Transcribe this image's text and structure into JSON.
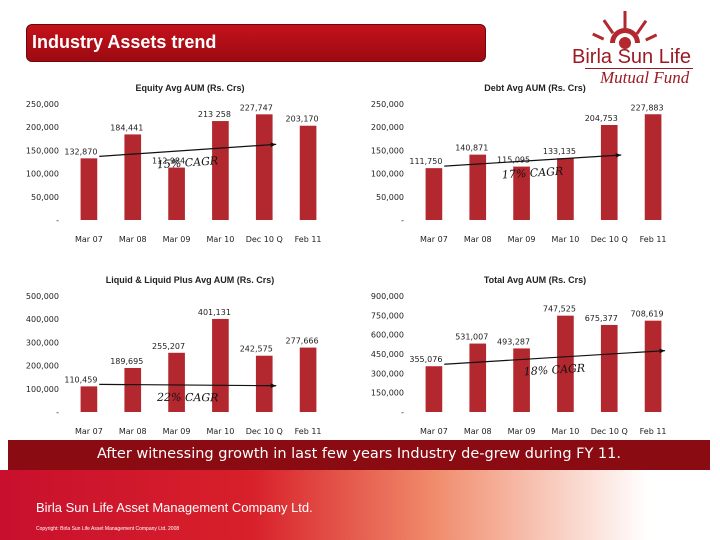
{
  "header": {
    "title": "Industry Assets trend"
  },
  "logo": {
    "name": "Birla Sun Life",
    "sub": "Mutual Fund"
  },
  "summary": "After witnessing growth in last few years Industry de-grew during FY 11.",
  "footer": {
    "company": "Birla Sun Life Asset Management Company Ltd.",
    "copyright": "Copyright: Birla Sun Life Asset Management Company Ltd. 2008"
  },
  "colors": {
    "bar": "#b3282e",
    "title_bar": "#b0101a",
    "footer": "#c8102e"
  },
  "chart_data": [
    {
      "type": "bar",
      "title": "Equity Avg AUM (Rs. Crs)",
      "categories": [
        "Mar 07",
        "Mar 08",
        "Mar 09",
        "Mar 10",
        "Dec 10 Q",
        "Feb 11"
      ],
      "values": [
        132870,
        184441,
        112984,
        213258,
        227747,
        203170
      ],
      "labels": [
        "132,870",
        "184,441",
        "112,984",
        "213 258",
        "227,747",
        "203,170"
      ],
      "yticks": [
        "-",
        "50,000",
        "100,000",
        "150,000",
        "200,000",
        "250,000"
      ],
      "ylim": [
        0,
        250000
      ],
      "annotation": "15% CAGR",
      "trend": [
        0,
        4
      ]
    },
    {
      "type": "bar",
      "title": "Debt Avg AUM (Rs. Crs)",
      "categories": [
        "Mar 07",
        "Mar 08",
        "Mar 09",
        "Mar 10",
        "Dec 10 Q",
        "Feb 11"
      ],
      "values": [
        111750,
        140871,
        115095,
        133135,
        204753,
        227883
      ],
      "labels": [
        "111,750",
        "140,871",
        "115,095",
        "133,135",
        "204,753",
        "227,883"
      ],
      "yticks": [
        "-",
        "50,000",
        "100,000",
        "150,000",
        "200,000",
        "250,000"
      ],
      "ylim": [
        0,
        250000
      ],
      "annotation": "17% CAGR",
      "trend": [
        0,
        4
      ]
    },
    {
      "type": "bar",
      "title": "Liquid & Liquid Plus Avg AUM (Rs. Crs)",
      "categories": [
        "Mar 07",
        "Mar 08",
        "Mar 09",
        "Mar 10",
        "Dec 10 Q",
        "Feb 11"
      ],
      "values": [
        110459,
        189695,
        255207,
        401131,
        242575,
        277666
      ],
      "labels": [
        "110,459",
        "189,695",
        "255,207",
        "401,131",
        "242,575",
        "277,666"
      ],
      "yticks": [
        "-",
        "100,000",
        "200,000",
        "300,000",
        "400,000",
        "500,000"
      ],
      "ylim": [
        0,
        500000
      ],
      "annotation": "22% CAGR",
      "trend": [
        0,
        4
      ]
    },
    {
      "type": "bar",
      "title": "Total Avg AUM (Rs. Crs)",
      "categories": [
        "Mar 07",
        "Mar 08",
        "Mar 09",
        "Mar 10",
        "Dec 10 Q",
        "Feb 11"
      ],
      "values": [
        355076,
        531007,
        493287,
        747525,
        675377,
        708619
      ],
      "labels": [
        "355,076",
        "531,007",
        "493,287",
        "747,525",
        "675,377",
        "708,619"
      ],
      "yticks": [
        "-",
        "150,000",
        "300,000",
        "450,000",
        "600,000",
        "750,000",
        "900,000"
      ],
      "ylim": [
        0,
        900000
      ],
      "annotation": "18% CAGR",
      "trend": [
        0,
        5
      ]
    }
  ]
}
